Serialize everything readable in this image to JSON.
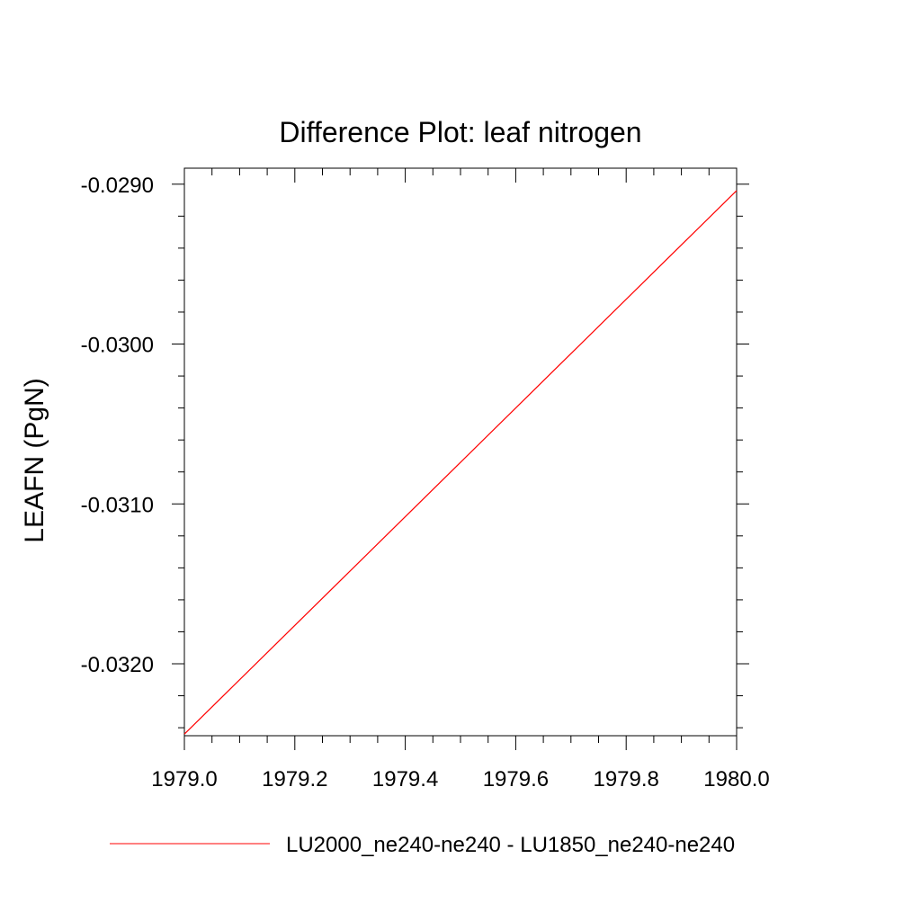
{
  "chart_data": {
    "type": "line",
    "title": "Difference Plot: leaf nitrogen",
    "xlabel": "",
    "ylabel": "LEAFN  (PgN)",
    "xlim": [
      1979.0,
      1980.0
    ],
    "ylim": [
      -0.03245,
      -0.0289
    ],
    "x_ticks": [
      1979.0,
      1979.2,
      1979.4,
      1979.6,
      1979.8,
      1980.0
    ],
    "x_tick_labels": [
      "1979.0",
      "1979.2",
      "1979.4",
      "1979.6",
      "1979.8",
      "1980.0"
    ],
    "y_ticks": [
      -0.029,
      -0.03,
      -0.031,
      -0.032
    ],
    "y_tick_labels": [
      "-0.0290",
      "-0.0300",
      "-0.0310",
      "-0.0320"
    ],
    "grid": false,
    "legend_position": "bottom",
    "series": [
      {
        "name": "LU2000_ne240-ne240 - LU1850_ne240-ne240",
        "color": "#ff0000",
        "x": [
          1979.0,
          1980.0
        ],
        "y": [
          -0.03244,
          -0.02904
        ]
      }
    ]
  }
}
